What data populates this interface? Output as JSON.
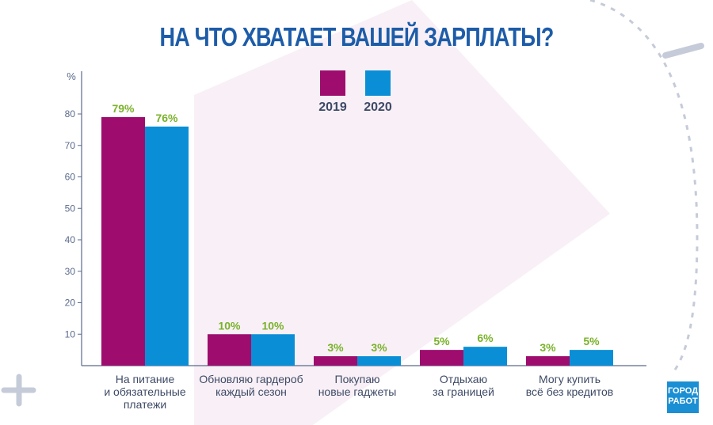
{
  "chart_data": {
    "type": "bar",
    "title": "НА ЧТО ХВАТАЕТ ВАШЕЙ ЗАРПЛАТЫ?",
    "ylabel": "%",
    "ylim": [
      0,
      90
    ],
    "yticks": [
      10,
      20,
      30,
      40,
      50,
      60,
      70,
      80
    ],
    "grid": false,
    "legend": "top-center",
    "categories": [
      [
        "На питание",
        "и обязательные",
        "платежи"
      ],
      [
        "Обновляю гардероб",
        "каждый сезон"
      ],
      [
        "Покупаю",
        "новые гаджеты"
      ],
      [
        "Отдыхаю",
        "за границей"
      ],
      [
        "Могу купить",
        "всё без кредитов"
      ]
    ],
    "series": [
      {
        "name": "2019",
        "color": "#9e0d6e",
        "values": [
          79,
          10,
          3,
          5,
          3
        ],
        "labels": [
          "79%",
          "10%",
          "3%",
          "5%",
          "3%"
        ]
      },
      {
        "name": "2020",
        "color": "#0a8fd6",
        "values": [
          76,
          10,
          3,
          6,
          5
        ],
        "labels": [
          "76%",
          "10%",
          "3%",
          "6%",
          "5%"
        ]
      }
    ],
    "label_color": "#7ab22a"
  },
  "logo": {
    "line1": "ГОРОД",
    "line2": "РАБОТ"
  }
}
